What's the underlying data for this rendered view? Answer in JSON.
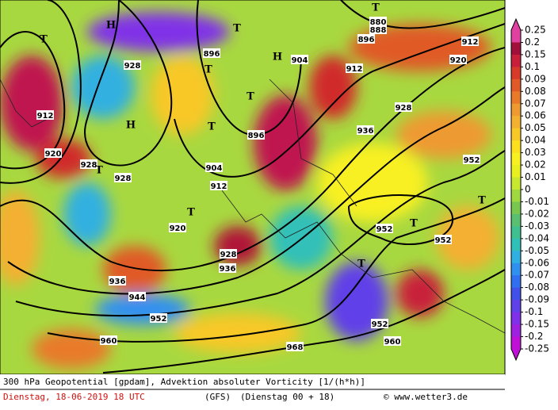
{
  "map": {
    "contour_labels": [
      "912",
      "920",
      "928",
      "928",
      "928",
      "912",
      "920",
      "904",
      "896",
      "896",
      "904",
      "912",
      "928",
      "936",
      "952",
      "952",
      "952",
      "928",
      "936",
      "936",
      "944",
      "952",
      "960",
      "968",
      "952",
      "960",
      "920",
      "912",
      "896",
      "888",
      "880"
    ],
    "centers": [
      "T",
      "H",
      "T",
      "H",
      "T",
      "T",
      "H",
      "T",
      "T",
      "T",
      "T",
      "T",
      "T",
      "T"
    ]
  },
  "colorbar": {
    "labels": [
      "0.25",
      "0.2",
      "0.15",
      "0.1",
      "0.09",
      "0.08",
      "0.07",
      "0.06",
      "0.05",
      "0.04",
      "0.03",
      "0.02",
      "0.01",
      "0",
      "-0.01",
      "-0.02",
      "-0.03",
      "-0.04",
      "-0.05",
      "-0.06",
      "-0.07",
      "-0.08",
      "-0.09",
      "-0.1",
      "-0.15",
      "-0.2",
      "-0.25"
    ],
    "colors": [
      "#e040a0",
      "#a0103a",
      "#c8203a",
      "#d83a2a",
      "#e05a28",
      "#e87a2a",
      "#ee9a30",
      "#f4b030",
      "#f8c828",
      "#fce020",
      "#f8f020",
      "#e8f020",
      "#c8e830",
      "#a0d840",
      "#78c850",
      "#58c070",
      "#40c090",
      "#30c0b8",
      "#30b0e0",
      "#3090f0",
      "#3070f0",
      "#4050e8",
      "#6040e8",
      "#8030e8",
      "#a020e0",
      "#c010d8"
    ]
  },
  "footer": {
    "line1": "300 hPa Geopotential [gpdam], Advektion absoluter Vorticity [1/(h*h)]",
    "date": "Dienstag, 18-06-2019  18 UTC",
    "model": "(GFS)",
    "run": "(Dienstag 00 + 18)",
    "credit": "© www.wetter3.de"
  }
}
